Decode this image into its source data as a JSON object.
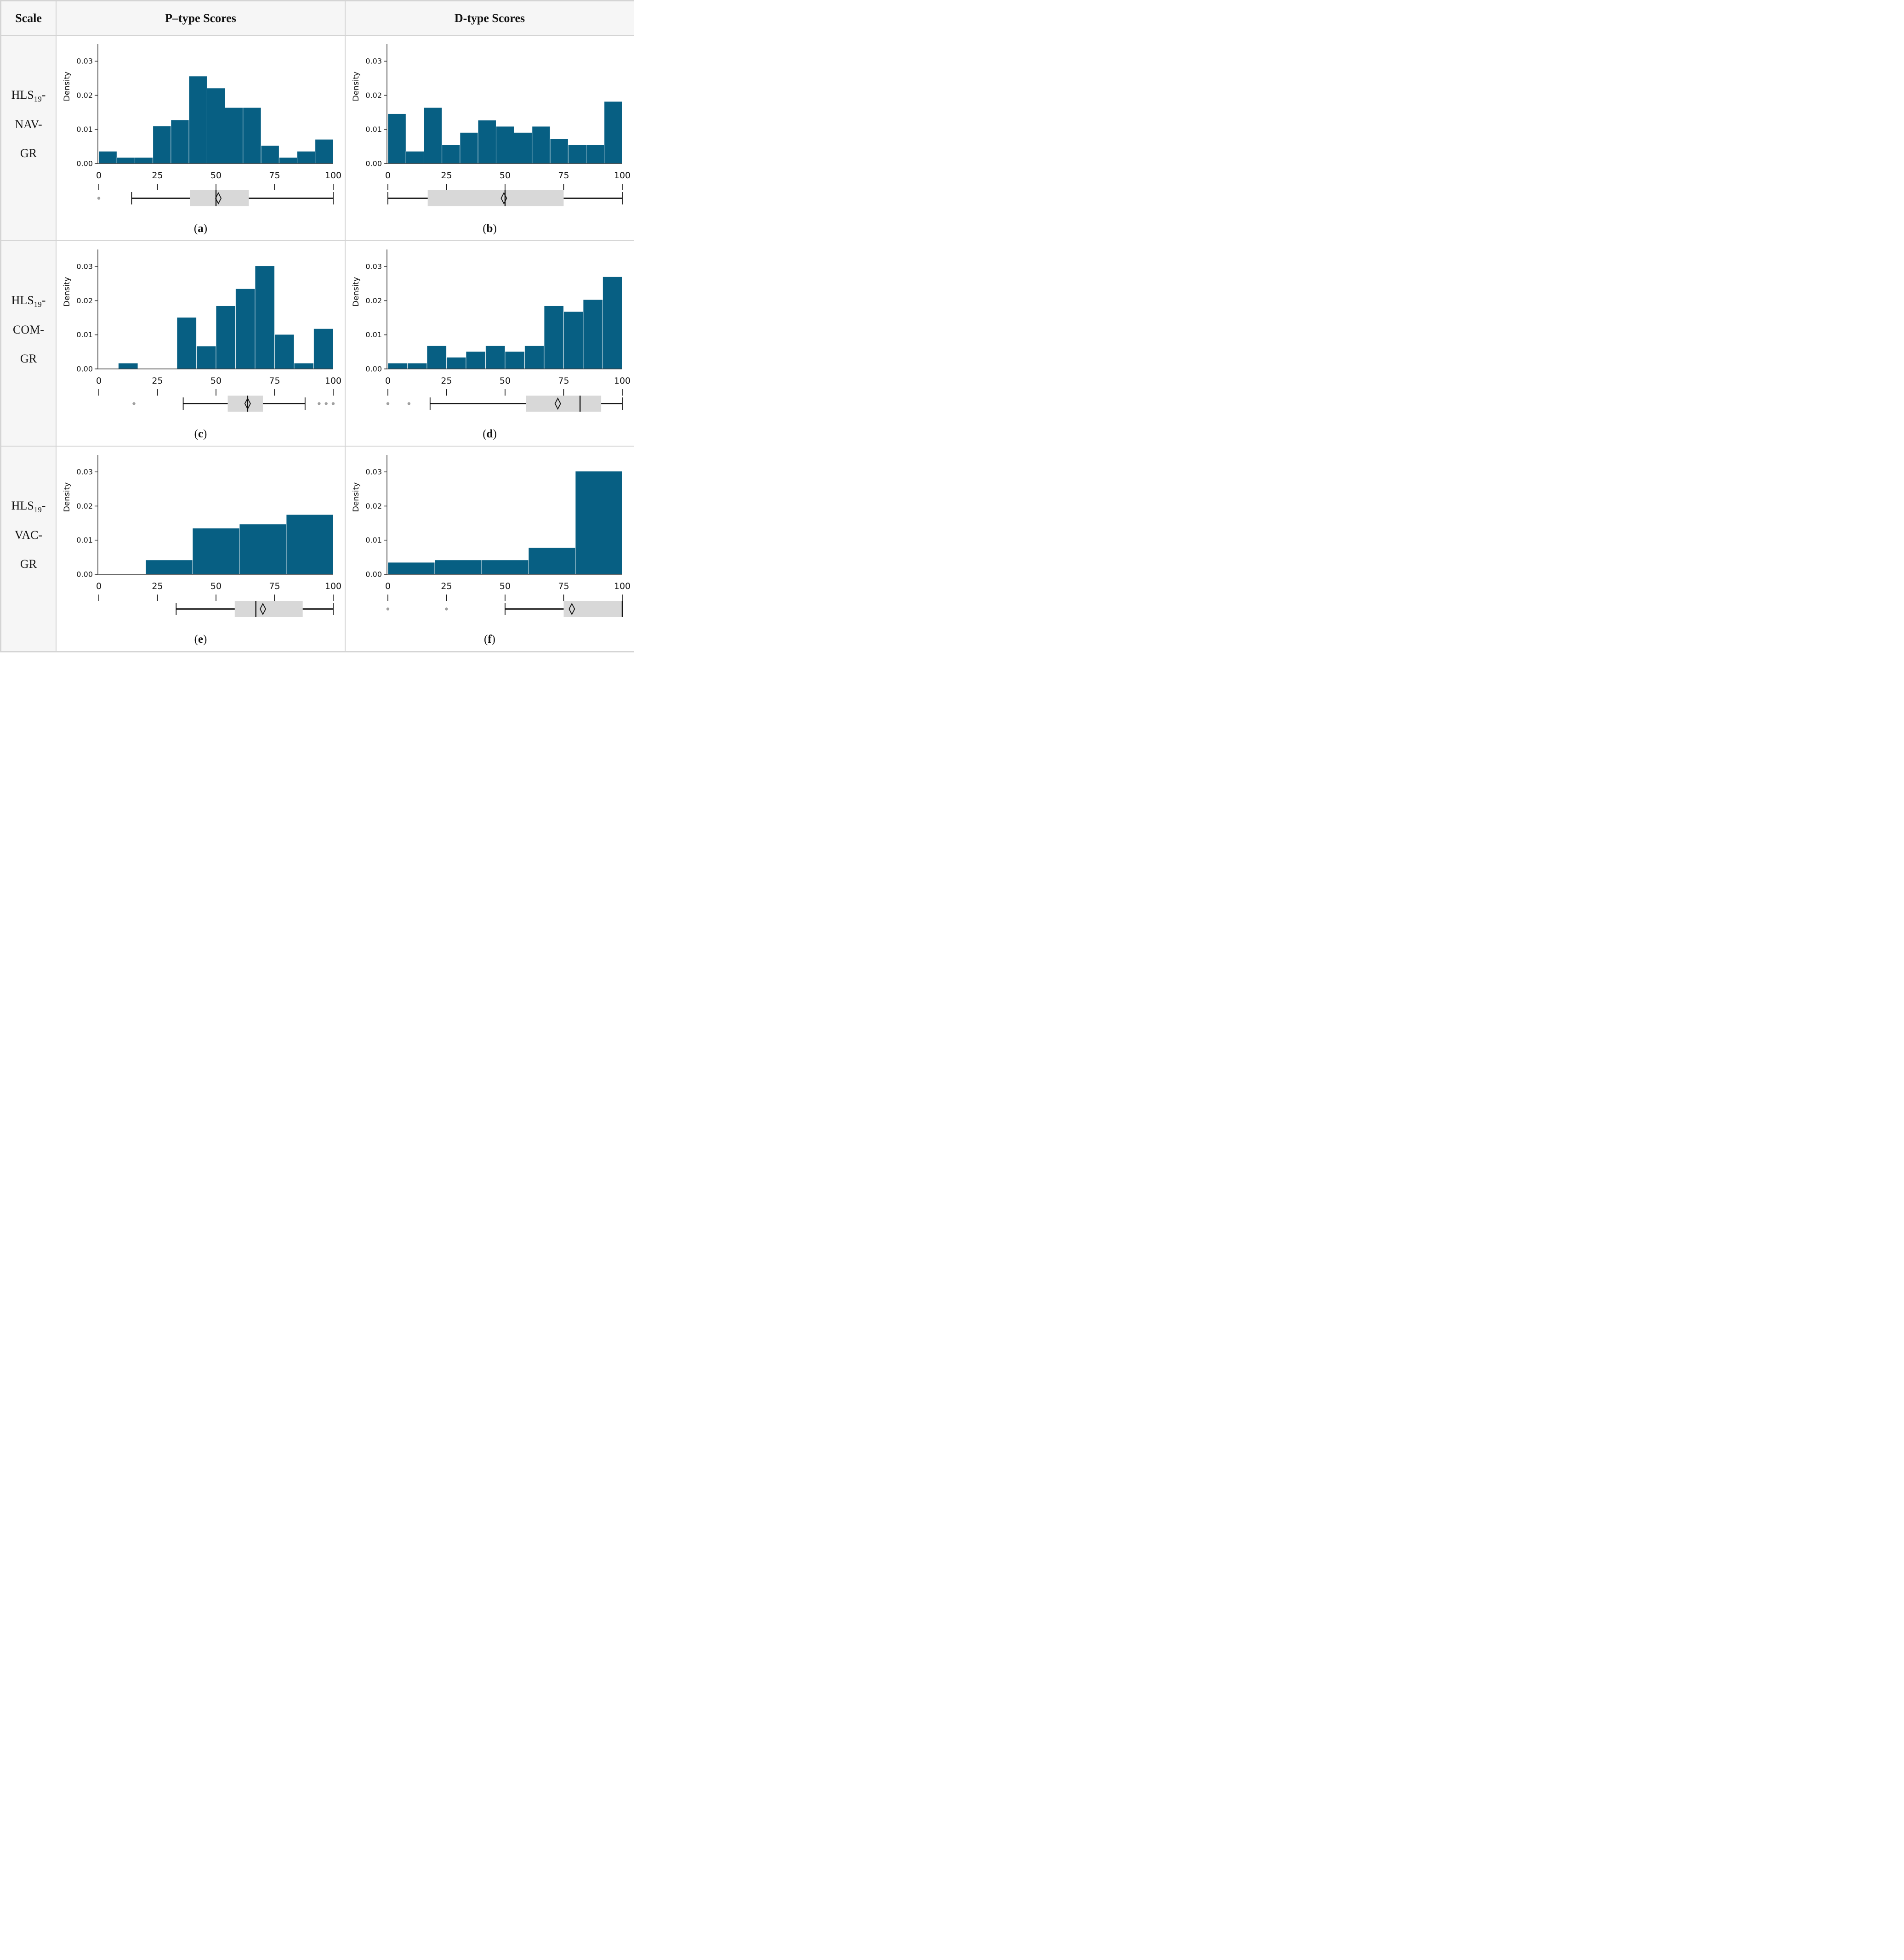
{
  "strings": {
    "paren_open": "(",
    "paren_close": ")"
  },
  "header": {
    "scale": "Scale",
    "p_type": "P–type Scores",
    "d_type": "D-type Scores"
  },
  "rows": [
    {
      "main": "HLS",
      "sub": "19",
      "rest": "-",
      "line2": "NAV-",
      "line3": "GR"
    },
    {
      "main": "HLS",
      "sub": "19",
      "rest": "-",
      "line2": "COM-",
      "line3": "GR"
    },
    {
      "main": "HLS",
      "sub": "19",
      "rest": "-",
      "line2": "VAC-",
      "line3": "GR"
    }
  ],
  "axes": {
    "ylabel": "Density",
    "ytick_values": [
      0,
      0.01,
      0.02,
      0.03
    ],
    "ytick_labels": [
      "0.00",
      "0.01",
      "0.02",
      "0.03"
    ],
    "xticks": [
      0,
      25,
      50,
      75,
      100
    ],
    "xlim": [
      0,
      100
    ],
    "ylim": [
      0,
      0.035
    ],
    "grid": false,
    "legend": "none"
  },
  "colors": {
    "bar": "#075f83",
    "bar_edge": "#ffffff",
    "box_fill": "#d8d8d8",
    "outlier": "#a0a0a0",
    "axis": "#3c3c3c",
    "line": "#111111"
  },
  "chart_data": [
    {
      "type": "bar",
      "subtype": "histogram+boxplot",
      "caption": "a",
      "scale": "HLS19-NAV-GR",
      "score_type": "P-type",
      "xlabel_ticks": [
        0,
        25,
        50,
        75,
        100
      ],
      "ylabel": "Density",
      "bin_start": 0,
      "bin_width": 7.692,
      "densities": [
        0.0036,
        0.0018,
        0.0018,
        0.011,
        0.0128,
        0.0256,
        0.0221,
        0.0164,
        0.0164,
        0.0053,
        0.0018,
        0.0036,
        0.0071
      ],
      "boxplot": {
        "outliers": [
          0
        ],
        "whisker_low": 14,
        "q1": 39,
        "median": 50,
        "mean": 51,
        "q3": 64,
        "whisker_high": 100
      }
    },
    {
      "type": "bar",
      "subtype": "histogram+boxplot",
      "caption": "b",
      "scale": "HLS19-NAV-GR",
      "score_type": "D-type",
      "xlabel_ticks": [
        0,
        25,
        50,
        75,
        100
      ],
      "ylabel": "Density",
      "bin_start": 0,
      "bin_width": 7.692,
      "densities": [
        0.0146,
        0.0036,
        0.0164,
        0.0055,
        0.0091,
        0.0127,
        0.0109,
        0.0091,
        0.0109,
        0.0073,
        0.0055,
        0.0055,
        0.0182
      ],
      "boxplot": {
        "outliers": [],
        "whisker_low": 0,
        "q1": 17,
        "median": 50,
        "mean": 49.5,
        "q3": 75,
        "whisker_high": 100
      }
    },
    {
      "type": "bar",
      "subtype": "histogram+boxplot",
      "caption": "c",
      "scale": "HLS19-COM-GR",
      "score_type": "P-type",
      "xlabel_ticks": [
        0,
        25,
        50,
        75,
        100
      ],
      "ylabel": "Density",
      "bin_start": 0,
      "bin_width": 8.333,
      "densities": [
        0,
        0.0017,
        0,
        0,
        0.0151,
        0.0067,
        0.0185,
        0.0235,
        0.0302,
        0.0101,
        0.0017,
        0.0118
      ],
      "boxplot": {
        "outliers": [
          15,
          94,
          97,
          100
        ],
        "whisker_low": 36,
        "q1": 55,
        "median": 63.5,
        "mean": 63.5,
        "q3": 70,
        "whisker_high": 88
      }
    },
    {
      "type": "bar",
      "subtype": "histogram+boxplot",
      "caption": "d",
      "scale": "HLS19-COM-GR",
      "score_type": "D-type",
      "xlabel_ticks": [
        0,
        25,
        50,
        75,
        100
      ],
      "ylabel": "Density",
      "bin_start": 0,
      "bin_width": 8.333,
      "densities": [
        0.0017,
        0.0017,
        0.0068,
        0.0034,
        0.0051,
        0.0068,
        0.0051,
        0.0068,
        0.0185,
        0.0168,
        0.0203,
        0.027
      ],
      "boxplot": {
        "outliers": [
          0,
          9
        ],
        "whisker_low": 18,
        "q1": 59,
        "median": 82,
        "mean": 72.5,
        "q3": 91,
        "whisker_high": 100
      }
    },
    {
      "type": "bar",
      "subtype": "histogram+boxplot",
      "caption": "e",
      "scale": "HLS19-VAC-GR",
      "score_type": "P-type",
      "xlabel_ticks": [
        0,
        25,
        50,
        75,
        100
      ],
      "ylabel": "Density",
      "bin_start": 0,
      "bin_width": 20,
      "densities": [
        0,
        0.0042,
        0.0135,
        0.0147,
        0.0175
      ],
      "boxplot": {
        "outliers": [],
        "whisker_low": 33,
        "q1": 58,
        "median": 67,
        "mean": 70,
        "q3": 87,
        "whisker_high": 100
      }
    },
    {
      "type": "bar",
      "subtype": "histogram+boxplot",
      "caption": "f",
      "scale": "HLS19-VAC-GR",
      "score_type": "D-type",
      "xlabel_ticks": [
        0,
        25,
        50,
        75,
        100
      ],
      "ylabel": "Density",
      "bin_start": 0,
      "bin_width": 20,
      "densities": [
        0.0035,
        0.0042,
        0.0042,
        0.0078,
        0.0302
      ],
      "boxplot": {
        "outliers": [
          0,
          25
        ],
        "whisker_low": 50,
        "q1": 75,
        "median": 100,
        "mean": 78.5,
        "q3": 100,
        "whisker_high": 100
      }
    }
  ]
}
